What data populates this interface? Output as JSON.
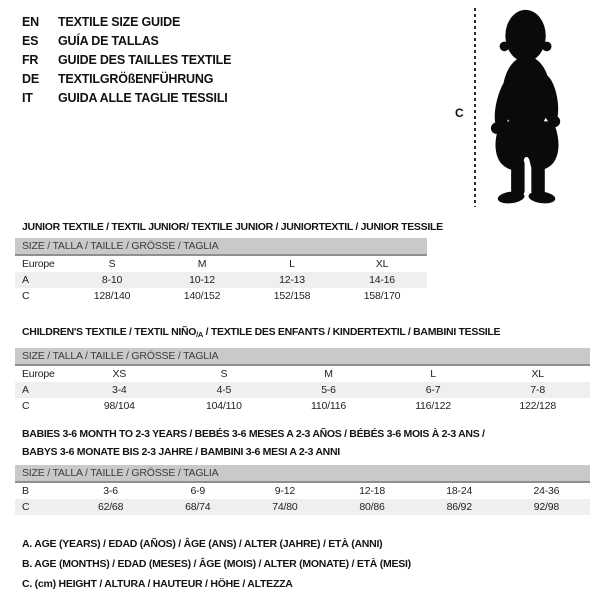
{
  "page": {
    "background": "#ffffff",
    "header_bar_color": "#c9c9c9",
    "stripe_color": "#efefef",
    "text_color": "#1a1a1a"
  },
  "languages": [
    {
      "code": "EN",
      "title": "TEXTILE SIZE GUIDE"
    },
    {
      "code": "ES",
      "title": "GUÍA DE TALLAS"
    },
    {
      "code": "FR",
      "title": "GUIDE DES TAILLES TEXTILE"
    },
    {
      "code": "DE",
      "title": "TEXTILGRÖßENFÜHRUNG"
    },
    {
      "code": "IT",
      "title": "GUIDA ALLE TAGLIE TESSILI"
    }
  ],
  "figure": {
    "height_marker": "C",
    "icon": "baby-silhouette-icon"
  },
  "sections": [
    {
      "heading": "JUNIOR TEXTILE / TEXTIL JUNIOR/ TEXTILE JUNIOR / JUNIORTEXTIL / JUNIOR TESSILE",
      "size_header": "SIZE / TALLA / TAILLE / GRÖSSE / TAGLIA",
      "rows": [
        [
          "Europe",
          "S",
          "M",
          "L",
          "XL"
        ],
        [
          "A",
          "8-10",
          "10-12",
          "12-13",
          "14-16"
        ],
        [
          "C",
          "128/140",
          "140/152",
          "152/158",
          "158/170"
        ]
      ]
    },
    {
      "heading_pre": "CHILDREN'S TEXTILE / TEXTIL NIÑO",
      "heading_sub": "/A",
      "heading_post": " / TEXTILE DES ENFANTS / KINDERTEXTIL / BAMBINI TESSILE",
      "size_header": "SIZE / TALLA / TAILLE / GRÖSSE / TAGLIA",
      "rows": [
        [
          "Europe",
          "XS",
          "S",
          "M",
          "L",
          "XL"
        ],
        [
          "A",
          "3-4",
          "4-5",
          "5-6",
          "6-7",
          "7-8"
        ],
        [
          "C",
          "98/104",
          "104/110",
          "110/116",
          "116/122",
          "122/128"
        ]
      ]
    },
    {
      "heading_lines": [
        "BABIES 3-6 MONTH TO 2-3 YEARS / BEBÉS 3-6 MESES A 2-3 AÑOS / BÉBÉS 3-6 MOIS À 2-3 ANS /",
        "BABYS 3-6 MONATE BIS 2-3 JAHRE / BAMBINI 3-6 MESI A 2-3 ANNI"
      ],
      "size_header": "SIZE / TALLA / TAILLE / GRÖSSE / TAGLIA",
      "rows": [
        [
          "B",
          "3-6",
          "6-9",
          "9-12",
          "12-18",
          "18-24",
          "24-36"
        ],
        [
          "C",
          "62/68",
          "68/74",
          "74/80",
          "80/86",
          "86/92",
          "92/98"
        ]
      ]
    }
  ],
  "notes": [
    "A. AGE (YEARS) / EDAD (AÑOS) / ÂGE (ANS) / ALTER (JAHRE) / ETÀ (ANNI)",
    "B. AGE (MONTHS) / EDAD (MESES) / ÂGE (MOIS) / ALTER (MONATE) / ETÀ (MESI)",
    "C. (cm) HEIGHT / ALTURA / HAUTEUR / HÖHE / ALTEZZA"
  ]
}
